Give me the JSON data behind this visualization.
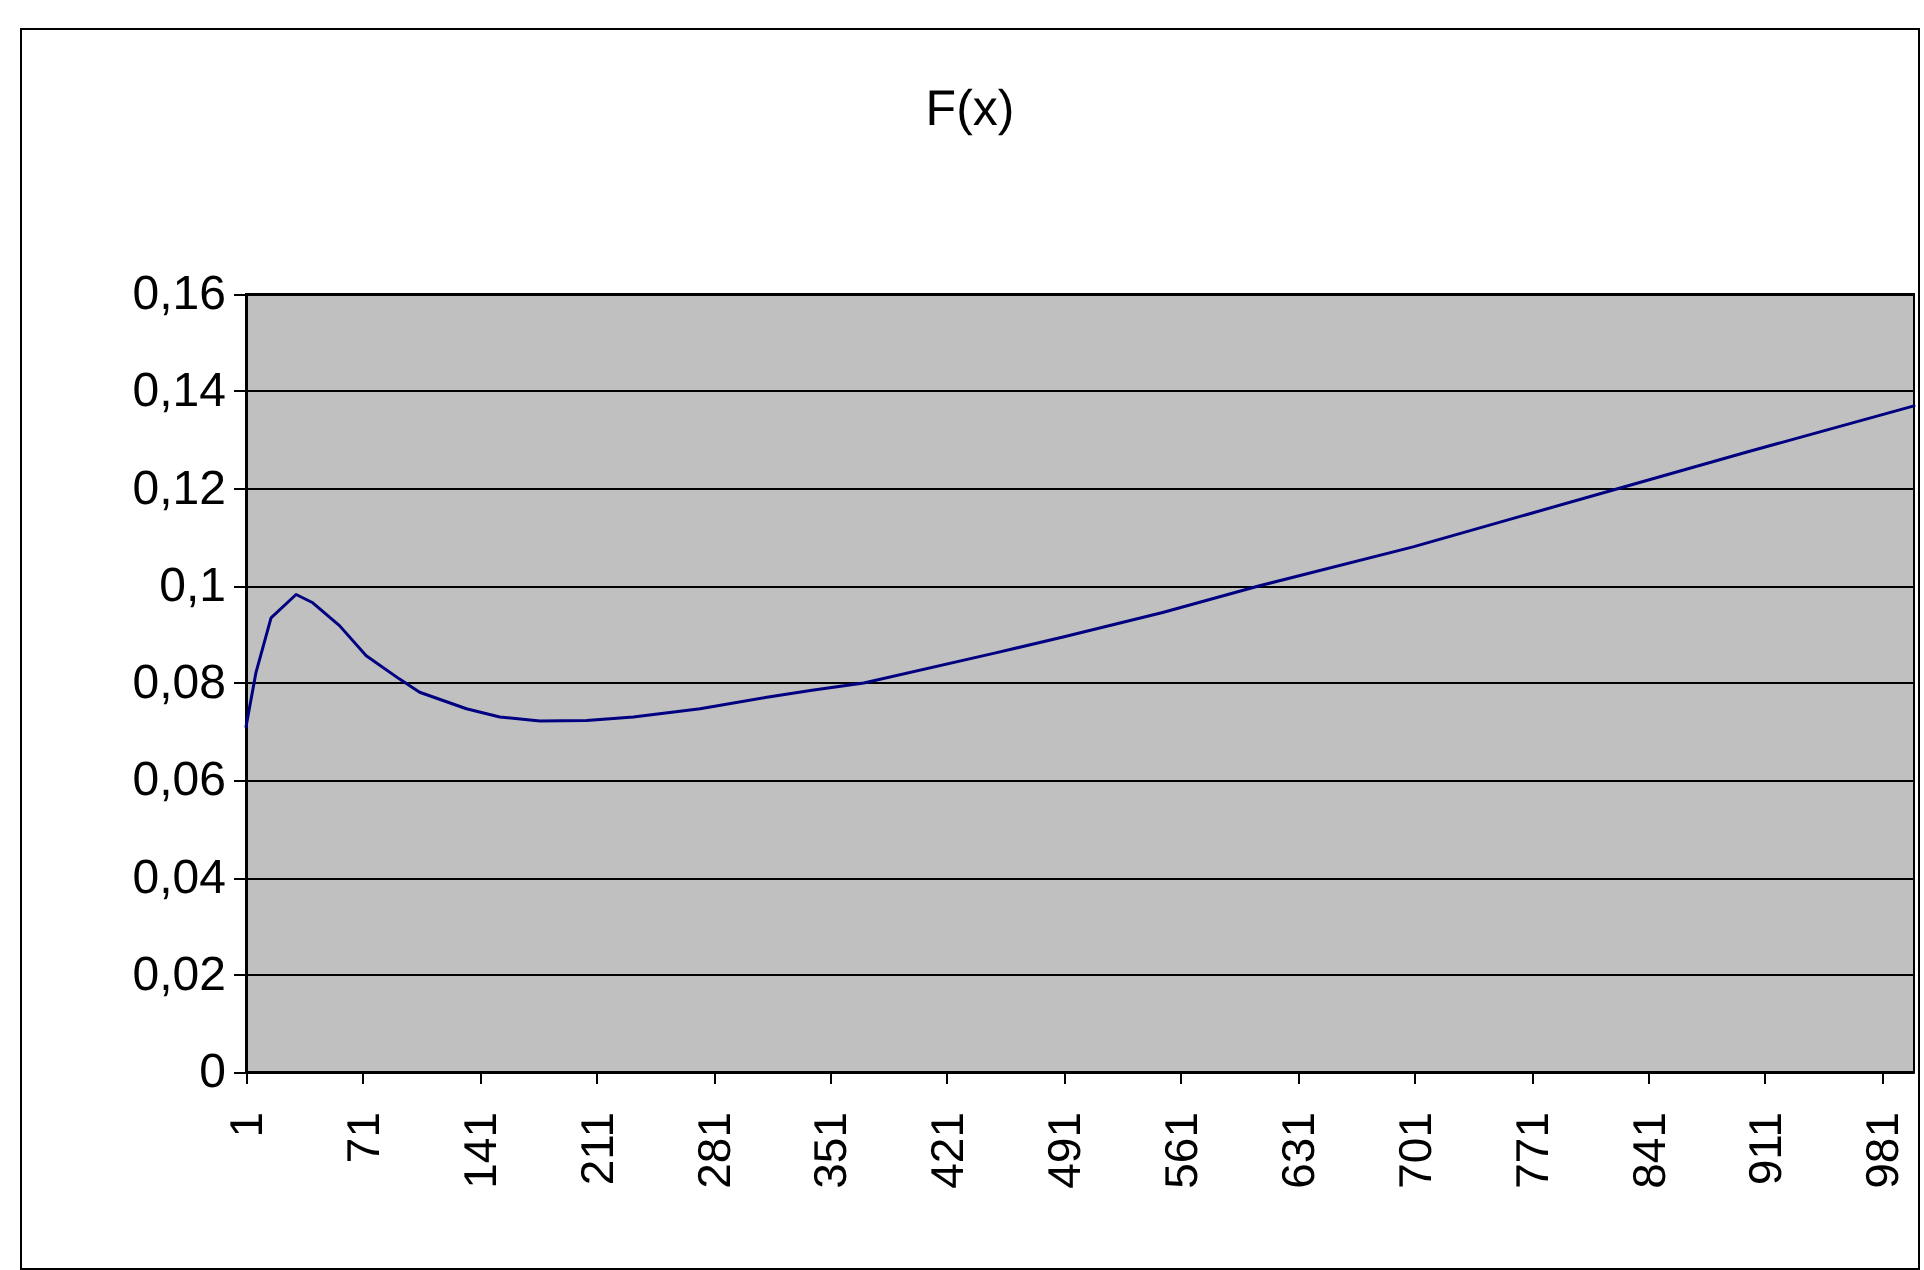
{
  "chart_data": {
    "type": "line",
    "title": "F(x)",
    "x": [
      1,
      7,
      16,
      31,
      41,
      57,
      73,
      93,
      105,
      133,
      153,
      177,
      205,
      233,
      273,
      312,
      340,
      371,
      450,
      491,
      550,
      608,
      700,
      823,
      900,
      1000
    ],
    "series": [
      {
        "color": "#000080",
        "values": [
          0.071,
          0.0822,
          0.0934,
          0.0982,
          0.0965,
          0.0918,
          0.0856,
          0.0808,
          0.0781,
          0.0747,
          0.073,
          0.0722,
          0.0723,
          0.073,
          0.0747,
          0.077,
          0.0785,
          0.08,
          0.0862,
          0.0895,
          0.0945,
          0.1,
          0.108,
          0.12,
          0.1275,
          0.137
        ]
      }
    ],
    "xlim": [
      1,
      1000
    ],
    "xticks": [
      1,
      71,
      141,
      211,
      281,
      351,
      421,
      491,
      561,
      631,
      701,
      771,
      841,
      911,
      981
    ],
    "ylim": [
      0,
      0.16
    ],
    "yticks": [
      {
        "value": 0,
        "label": "0"
      },
      {
        "value": 0.02,
        "label": "0,02"
      },
      {
        "value": 0.04,
        "label": "0,04"
      },
      {
        "value": 0.06,
        "label": "0,06"
      },
      {
        "value": 0.08,
        "label": "0,08"
      },
      {
        "value": 0.1,
        "label": "0,1"
      },
      {
        "value": 0.12,
        "label": "0,12"
      },
      {
        "value": 0.14,
        "label": "0,14"
      },
      {
        "value": 0.16,
        "label": "0,16"
      }
    ],
    "grid": "y",
    "marker": "none",
    "line_style": "solid"
  }
}
